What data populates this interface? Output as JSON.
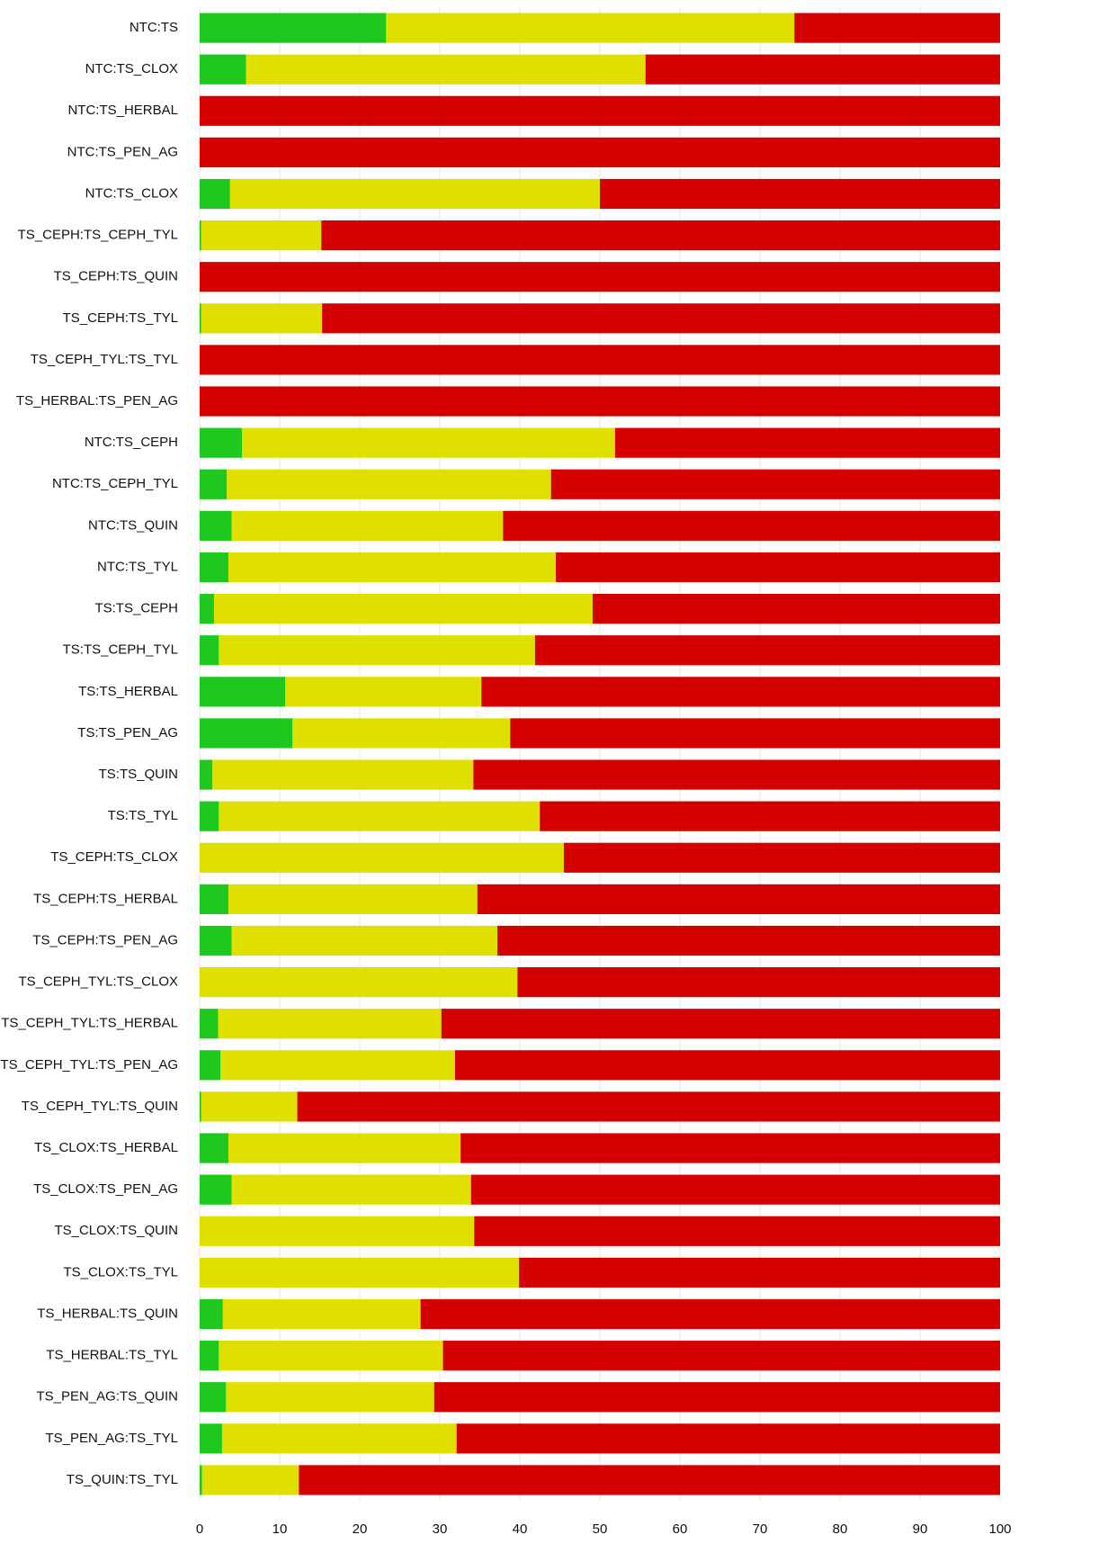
{
  "chart_data": {
    "type": "bar",
    "orientation": "horizontal",
    "stacked": true,
    "categories": [
      "NTC:TS",
      "NTC:TS_CLOX",
      "NTC:TS_HERBAL",
      "NTC:TS_PEN_AG",
      "NTC:TS_CLOX",
      "TS_CEPH:TS_CEPH_TYL",
      "TS_CEPH:TS_QUIN",
      "TS_CEPH:TS_TYL",
      "TS_CEPH_TYL:TS_TYL",
      "TS_HERBAL:TS_PEN_AG",
      "NTC:TS_CEPH",
      "NTC:TS_CEPH_TYL",
      "NTC:TS_QUIN",
      "NTC:TS_TYL",
      "TS:TS_CEPH",
      "TS:TS_CEPH_TYL",
      "TS:TS_HERBAL",
      "TS:TS_PEN_AG",
      "TS:TS_QUIN",
      "TS:TS_TYL",
      "TS_CEPH:TS_CLOX",
      "TS_CEPH:TS_HERBAL",
      "TS_CEPH:TS_PEN_AG",
      "TS_CEPH_TYL:TS_CLOX",
      "TS_CEPH_TYL:TS_HERBAL",
      "TS_CEPH_TYL:TS_PEN_AG",
      "TS_CEPH_TYL:TS_QUIN",
      "TS_CLOX:TS_HERBAL",
      "TS_CLOX:TS_PEN_AG",
      "TS_CLOX:TS_QUIN",
      "TS_CLOX:TS_TYL",
      "TS_HERBAL:TS_QUIN",
      "TS_HERBAL:TS_TYL",
      "TS_PEN_AG:TS_QUIN",
      "TS_PEN_AG:TS_TYL",
      "TS_QUIN:TS_TYL"
    ],
    "series": [
      {
        "color": "#1ec81e",
        "values": [
          23.3,
          5.8,
          0,
          0,
          3.8,
          0.2,
          0,
          0.2,
          0,
          0,
          5.3,
          3.4,
          4.0,
          3.6,
          1.8,
          2.4,
          10.7,
          11.6,
          1.6,
          2.4,
          0,
          3.6,
          4.0,
          0,
          2.3,
          2.6,
          0.2,
          3.6,
          4.0,
          0,
          0,
          2.9,
          2.4,
          3.3,
          2.8,
          0.3
        ]
      },
      {
        "color": "#dfe000",
        "values": [
          51.0,
          49.9,
          0,
          0,
          46.2,
          15.0,
          0,
          15.1,
          0,
          0,
          46.6,
          40.5,
          33.9,
          40.9,
          47.3,
          39.5,
          24.5,
          27.2,
          32.6,
          40.1,
          45.5,
          31.1,
          33.2,
          39.7,
          27.9,
          29.3,
          12.0,
          29.0,
          29.9,
          34.3,
          39.9,
          24.7,
          28.0,
          26.0,
          29.3,
          12.1
        ]
      },
      {
        "color": "#d40000",
        "values": [
          25.7,
          44.3,
          100,
          100,
          50.0,
          84.8,
          100,
          84.7,
          100,
          100,
          48.1,
          56.1,
          62.1,
          55.5,
          50.9,
          58.1,
          64.8,
          61.2,
          65.8,
          57.5,
          54.5,
          65.3,
          62.8,
          60.3,
          69.8,
          68.1,
          87.8,
          67.4,
          66.1,
          65.7,
          60.1,
          72.4,
          69.6,
          70.7,
          67.9,
          87.6
        ]
      }
    ],
    "xlim": [
      0,
      100
    ],
    "xticks": [
      0,
      10,
      20,
      30,
      40,
      50,
      60,
      70,
      80,
      90,
      100
    ],
    "grid": true
  }
}
